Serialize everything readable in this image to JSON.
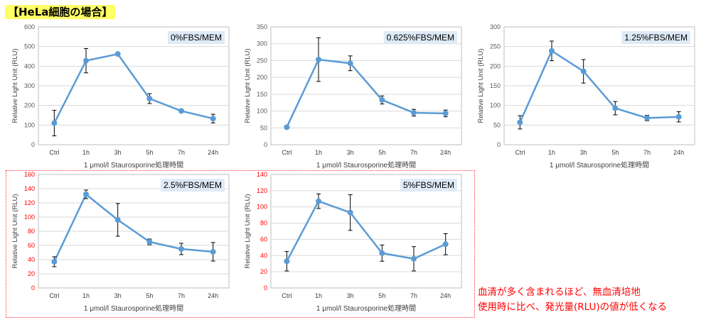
{
  "page": {
    "heading": "【HeLa細胞の場合】",
    "note_lines": [
      "血清が多く含まれるほど、無血清培地",
      "使用時に比べ、発光量(RLU)の値が低くなる"
    ]
  },
  "colors": {
    "series": "#5b9bd5",
    "label_box": "#deebf7",
    "highlight_axis": "#ff0000",
    "note": "#ff0000",
    "heading_bg": "#ffff66"
  },
  "chart_data": [
    {
      "type": "line",
      "title": "0%FBS/MEM",
      "categories": [
        "Ctrl",
        "1h",
        "3h",
        "5h",
        "7h",
        "24h"
      ],
      "values": [
        110,
        428,
        462,
        235,
        172,
        133
      ],
      "errors": [
        65,
        62,
        0,
        25,
        0,
        22
      ],
      "xlabel": "1 μmol/l Staurosporine処理時間",
      "ylabel": "Relative Light Unit (RLU)",
      "ylim": [
        0,
        600
      ],
      "ticks": [
        "0",
        "100",
        "200",
        "300",
        "400",
        "500",
        "600"
      ],
      "grid": true,
      "highlight": false
    },
    {
      "type": "line",
      "title": "0.625%FBS/MEM",
      "categories": [
        "Ctrl",
        "1h",
        "3h",
        "5h",
        "7h",
        "24h"
      ],
      "values": [
        52,
        253,
        242,
        133,
        95,
        93
      ],
      "errors": [
        5,
        65,
        22,
        12,
        10,
        10
      ],
      "xlabel": "1 μmol/l Staurosporine処理時間",
      "ylabel": "Relative Light Unit (RLU)",
      "ylim": [
        0,
        350
      ],
      "ticks": [
        "0",
        "50",
        "100",
        "150",
        "200",
        "250",
        "300",
        "350"
      ],
      "grid": true,
      "highlight": false
    },
    {
      "type": "line",
      "title": "1.25%FBS/MEM",
      "categories": [
        "Ctrl",
        "1h",
        "3h",
        "5h",
        "7h",
        "24h"
      ],
      "values": [
        57,
        239,
        187,
        93,
        68,
        71
      ],
      "errors": [
        17,
        25,
        30,
        17,
        7,
        13
      ],
      "xlabel": "1 μmol/l Staurosporine処理時間",
      "ylabel": "Relative Light Unit (RLU)",
      "ylim": [
        0,
        300
      ],
      "ticks": [
        "0",
        "50",
        "100",
        "150",
        "200",
        "250",
        "300"
      ],
      "grid": true,
      "highlight": false
    },
    {
      "type": "line",
      "title": "2.5%FBS/MEM",
      "categories": [
        "Ctrl",
        "1h",
        "3h",
        "5h",
        "7h",
        "24h"
      ],
      "values": [
        37,
        132,
        96,
        65,
        55,
        51
      ],
      "errors": [
        7,
        6,
        23,
        4,
        8,
        13
      ],
      "xlabel": "1 μmol/l Staurosporine処理時間",
      "ylabel": "Relative Light Unit (RLU)",
      "ylim": [
        0,
        160
      ],
      "ticks": [
        "0",
        "20",
        "40",
        "60",
        "80",
        "100",
        "120",
        "140",
        "160"
      ],
      "grid": true,
      "highlight": true
    },
    {
      "type": "line",
      "title": "5%FBS/MEM",
      "categories": [
        "Ctrl",
        "1h",
        "3h",
        "5h",
        "7h",
        "24h"
      ],
      "values": [
        33,
        107,
        93,
        43,
        36,
        54
      ],
      "errors": [
        12,
        9,
        22,
        10,
        15,
        13
      ],
      "xlabel": "1 μmol/l Staurosporine処理時間",
      "ylabel": "Relative Light Unit (RLU)",
      "ylim": [
        0,
        140
      ],
      "ticks": [
        "0",
        "20",
        "40",
        "60",
        "80",
        "100",
        "120",
        "140"
      ],
      "grid": true,
      "highlight": true
    }
  ]
}
